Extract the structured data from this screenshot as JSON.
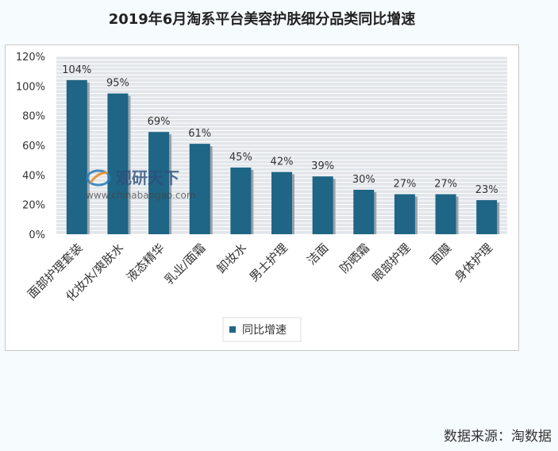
{
  "page": {
    "title": "2019年6月淘系平台美容护肤细分品类同比增速",
    "source": "数据来源：淘数据",
    "watermark_brand": "观研天下",
    "watermark_url": "www.chinabaogao.com"
  },
  "colors": {
    "bar": "#1f6585",
    "plot_bg": "#e2e6ea",
    "grid": "#ffffff",
    "text": "#333333"
  },
  "chart_data": {
    "type": "bar",
    "title": "2019年6月淘系平台美容护肤细分品类同比增速",
    "categories": [
      "面部护理套装",
      "化妆水/爽肤水",
      "液态精华",
      "乳业/面霜",
      "卸妆水",
      "男士护理",
      "洁面",
      "防晒霜",
      "眼部护理",
      "面膜",
      "身体护理"
    ],
    "series": [
      {
        "name": "同比增速",
        "values": [
          104,
          95,
          69,
          61,
          45,
          42,
          39,
          30,
          27,
          27,
          23
        ]
      }
    ],
    "data_labels": [
      "104%",
      "95%",
      "69%",
      "61%",
      "45%",
      "42%",
      "39%",
      "30%",
      "27%",
      "27%",
      "23%"
    ],
    "y_ticks": [
      "0%",
      "20%",
      "40%",
      "60%",
      "80%",
      "100%",
      "120%"
    ],
    "ylim": [
      0,
      120
    ],
    "grid": true,
    "legend_position": "bottom-center"
  }
}
